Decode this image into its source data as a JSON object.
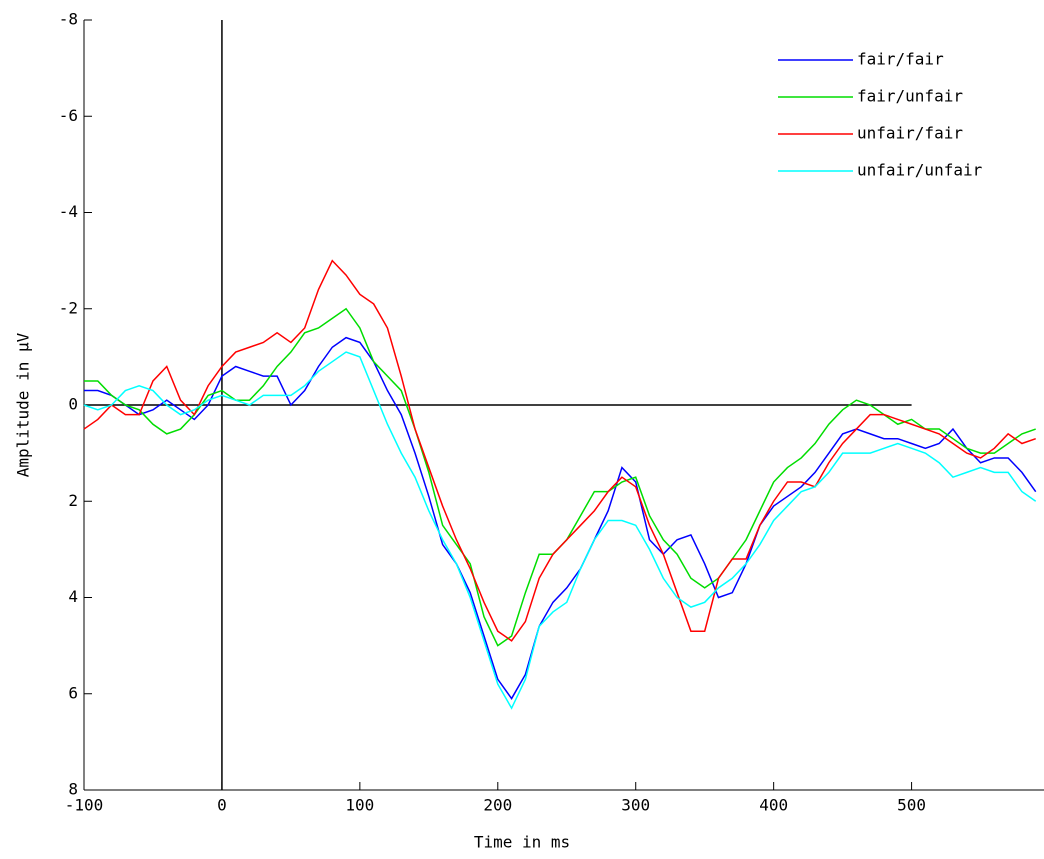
{
  "chart_data": {
    "type": "line",
    "xlabel": "Time in ms",
    "ylabel": "Amplitude in  µV",
    "x": [
      -100,
      -90,
      -80,
      -70,
      -60,
      -50,
      -40,
      -30,
      -20,
      -10,
      0,
      10,
      20,
      30,
      40,
      50,
      60,
      70,
      80,
      90,
      100,
      110,
      120,
      130,
      140,
      150,
      160,
      170,
      180,
      190,
      200,
      210,
      220,
      230,
      240,
      250,
      260,
      270,
      280,
      290,
      300,
      310,
      320,
      330,
      340,
      350,
      360,
      370,
      380,
      390,
      400,
      410,
      420,
      430,
      440,
      450,
      460,
      470,
      480,
      490,
      500,
      510,
      520,
      530,
      540,
      550,
      560,
      570,
      580,
      590
    ],
    "series": [
      {
        "name": "fair/fair",
        "color": "#0000ff",
        "values": [
          -0.3,
          -0.3,
          -0.2,
          0,
          0.2,
          0.1,
          -0.1,
          0.1,
          0.3,
          0,
          -0.6,
          -0.8,
          -0.7,
          -0.6,
          -0.6,
          0,
          -0.3,
          -0.8,
          -1.2,
          -1.4,
          -1.3,
          -0.9,
          -0.3,
          0.2,
          1,
          1.9,
          2.9,
          3.3,
          3.9,
          4.8,
          5.7,
          6.1,
          5.6,
          4.6,
          4.1,
          3.8,
          3.4,
          2.8,
          2.2,
          1.3,
          1.6,
          2.8,
          3.1,
          2.8,
          2.7,
          3.3,
          4,
          3.9,
          3.3,
          2.5,
          2.1,
          1.9,
          1.7,
          1.4,
          1,
          0.6,
          0.5,
          0.6,
          0.7,
          0.7,
          0.8,
          0.9,
          0.8,
          0.5,
          0.9,
          1.2,
          1.1,
          1.1,
          1.4,
          1.8
        ]
      },
      {
        "name": "fair/unfair",
        "color": "#00dd00",
        "values": [
          -0.5,
          -0.5,
          -0.2,
          0,
          0.1,
          0.4,
          0.6,
          0.5,
          0.2,
          -0.2,
          -0.3,
          -0.1,
          -0.1,
          -0.4,
          -0.8,
          -1.1,
          -1.5,
          -1.6,
          -1.8,
          -2.0,
          -1.6,
          -0.9,
          -0.6,
          -0.3,
          0.5,
          1.4,
          2.5,
          2.9,
          3.3,
          4.4,
          5.0,
          4.8,
          3.9,
          3.1,
          3.1,
          2.8,
          2.3,
          1.8,
          1.8,
          1.6,
          1.5,
          2.3,
          2.8,
          3.1,
          3.6,
          3.8,
          3.6,
          3.2,
          2.8,
          2.2,
          1.6,
          1.3,
          1.1,
          0.8,
          0.4,
          0.1,
          -0.1,
          0,
          0.2,
          0.4,
          0.3,
          0.5,
          0.5,
          0.7,
          0.9,
          1.0,
          1.0,
          0.8,
          0.6,
          0.5
        ]
      },
      {
        "name": "unfair/fair",
        "color": "#ff0000",
        "values": [
          0.5,
          0.3,
          0,
          0.2,
          0.2,
          -0.5,
          -0.8,
          -0.1,
          0.2,
          -0.4,
          -0.8,
          -1.1,
          -1.2,
          -1.3,
          -1.5,
          -1.3,
          -1.6,
          -2.4,
          -3.0,
          -2.7,
          -2.3,
          -2.1,
          -1.6,
          -0.6,
          0.5,
          1.3,
          2.1,
          2.8,
          3.4,
          4.1,
          4.7,
          4.9,
          4.5,
          3.6,
          3.1,
          2.8,
          2.5,
          2.2,
          1.8,
          1.5,
          1.7,
          2.5,
          3.1,
          3.9,
          4.7,
          4.7,
          3.6,
          3.2,
          3.2,
          2.5,
          2.0,
          1.6,
          1.6,
          1.7,
          1.2,
          0.8,
          0.5,
          0.2,
          0.2,
          0.3,
          0.4,
          0.5,
          0.6,
          0.8,
          1.0,
          1.1,
          0.9,
          0.6,
          0.8,
          0.7
        ]
      },
      {
        "name": "unfair/unfair",
        "color": "#00ffff",
        "values": [
          0,
          0.1,
          0,
          -0.3,
          -0.4,
          -0.3,
          0,
          0.2,
          0.1,
          -0.1,
          -0.2,
          -0.1,
          0,
          -0.2,
          -0.2,
          -0.2,
          -0.4,
          -0.7,
          -0.9,
          -1.1,
          -1.0,
          -0.3,
          0.4,
          1.0,
          1.5,
          2.2,
          2.8,
          3.3,
          4.0,
          4.9,
          5.8,
          6.3,
          5.7,
          4.6,
          4.3,
          4.1,
          3.4,
          2.8,
          2.4,
          2.4,
          2.5,
          3.0,
          3.6,
          4.0,
          4.2,
          4.1,
          3.8,
          3.6,
          3.3,
          2.9,
          2.4,
          2.1,
          1.8,
          1.7,
          1.4,
          1.0,
          1.0,
          1.0,
          0.9,
          0.8,
          0.9,
          1.0,
          1.2,
          1.5,
          1.4,
          1.3,
          1.4,
          1.4,
          1.8,
          2.0
        ]
      }
    ],
    "xlim": [
      -100,
      596
    ],
    "xticks": [
      -100,
      0,
      100,
      200,
      300,
      400,
      500
    ],
    "ylim": [
      -8,
      8
    ],
    "yticks": [
      -8,
      -6,
      -4,
      -2,
      0,
      2,
      4,
      6,
      8
    ],
    "y_reversed": true,
    "reference_lines": [
      {
        "axis": "y",
        "value": 0,
        "xlim": [
          -100,
          500
        ]
      },
      {
        "axis": "x",
        "value": 0
      }
    ],
    "legend": "northeast",
    "grid": false
  }
}
